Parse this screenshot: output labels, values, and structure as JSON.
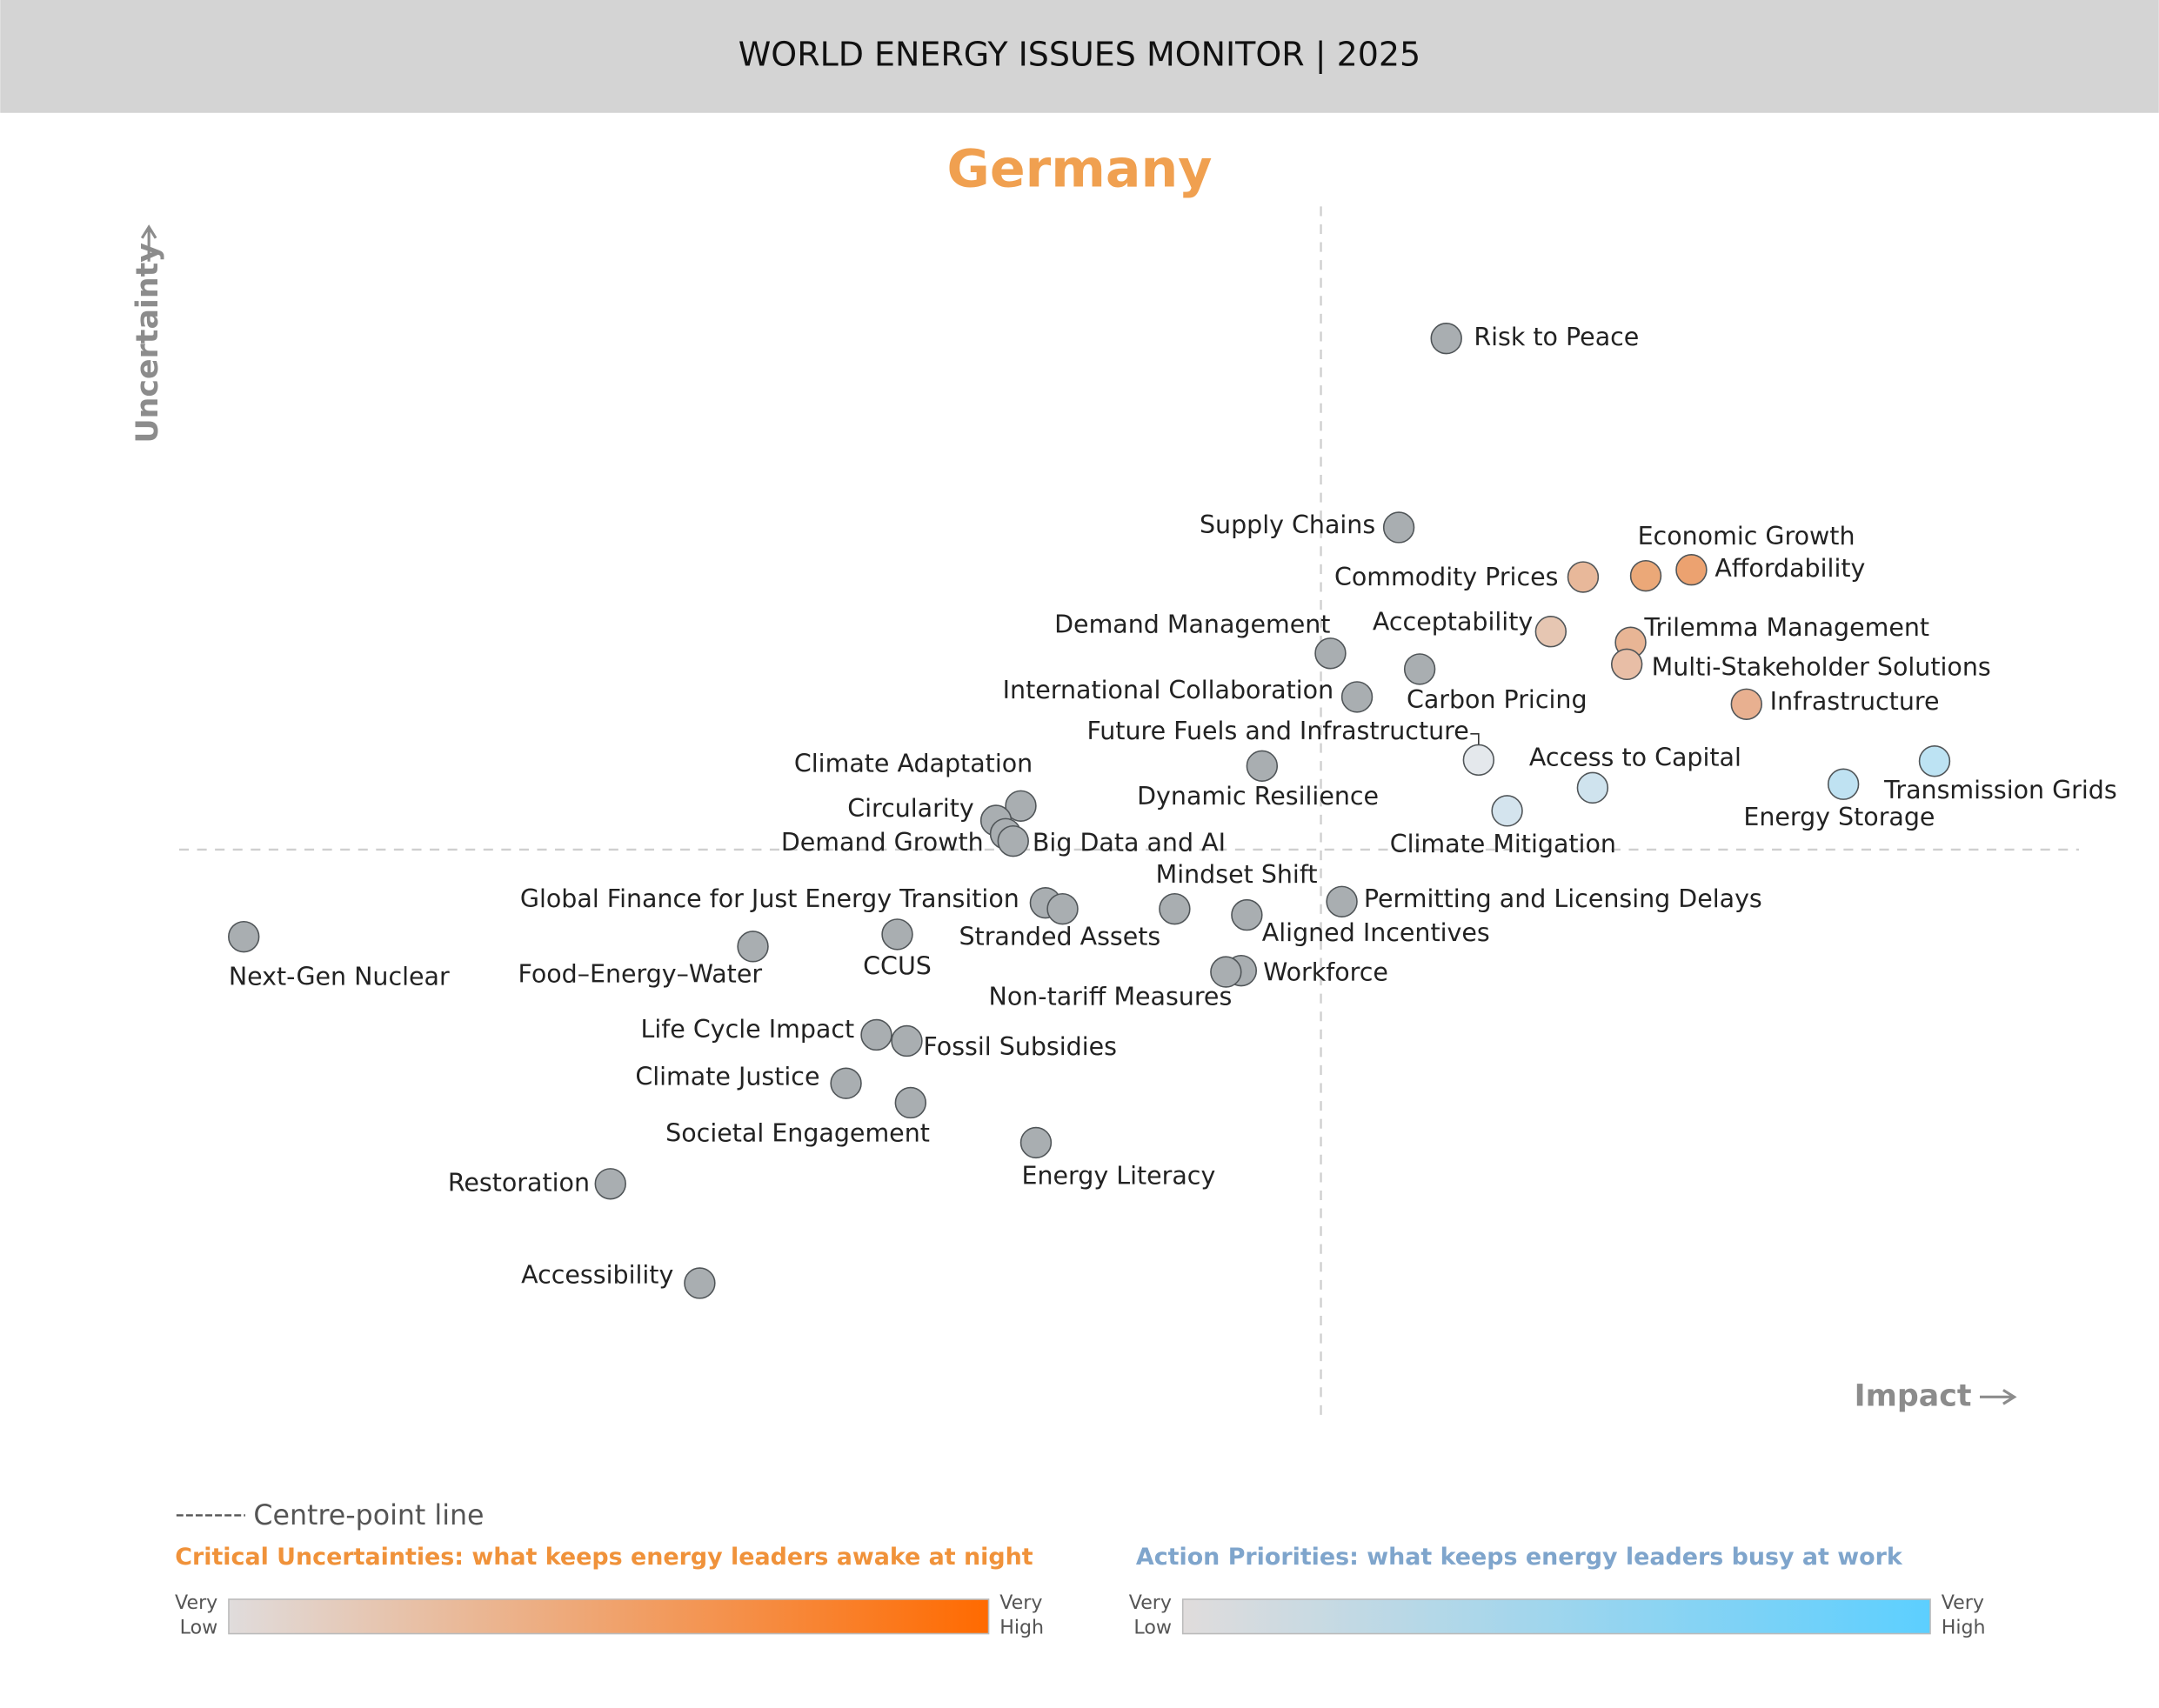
{
  "chart_data": {
    "type": "scatter",
    "header": "WORLD ENERGY ISSUES MONITOR | 2025",
    "title": "Germany",
    "x_label": "Impact",
    "y_label": "Uncertainty",
    "xlim": [
      0,
      100
    ],
    "ylim": [
      0,
      100
    ],
    "centre_point": {
      "x": 60.1,
      "y": 46.9,
      "label": "Centre-point line"
    },
    "points": [
      {
        "name": "Risk to Peace",
        "x": 66.7,
        "y": 89.1,
        "color": "#a9aeb1"
      },
      {
        "name": "Supply Chains",
        "x": 64.2,
        "y": 73.5,
        "color": "#a9aeb1"
      },
      {
        "name": "Commodity Prices",
        "x": 73.9,
        "y": 69.4,
        "color": "#e8b89a"
      },
      {
        "name": "Economic Growth",
        "x": 77.2,
        "y": 69.5,
        "color": "#eba878"
      },
      {
        "name": "Affordability",
        "x": 79.6,
        "y": 70.0,
        "color": "#eca270"
      },
      {
        "name": "Acceptability",
        "x": 72.2,
        "y": 64.9,
        "color": "#e6c6b2"
      },
      {
        "name": "Trilemma Management",
        "x": 76.4,
        "y": 64.0,
        "color": "#e8b595"
      },
      {
        "name": "Multi-Stakeholder Solutions",
        "x": 76.2,
        "y": 62.2,
        "color": "#e8bea6"
      },
      {
        "name": "Infrastructure",
        "x": 82.5,
        "y": 58.9,
        "color": "#e8b090"
      },
      {
        "name": "Demand Management",
        "x": 60.6,
        "y": 63.1,
        "color": "#a9aeb1"
      },
      {
        "name": "Carbon Pricing",
        "x": 65.3,
        "y": 61.8,
        "color": "#a9aeb1"
      },
      {
        "name": "International Collaboration",
        "x": 62.0,
        "y": 59.5,
        "color": "#a9aeb1"
      },
      {
        "name": "Future Fuels and Infrastructure",
        "x": 68.4,
        "y": 54.3,
        "color": "#e4e8ec"
      },
      {
        "name": "Dynamic Resilience",
        "x": 57.0,
        "y": 53.8,
        "color": "#a9aeb1"
      },
      {
        "name": "Access to Capital",
        "x": 74.4,
        "y": 52.0,
        "color": "#cfe3ee"
      },
      {
        "name": "Climate Mitigation",
        "x": 69.9,
        "y": 50.1,
        "color": "#d4e4ee"
      },
      {
        "name": "Energy Storage",
        "x": 87.6,
        "y": 52.3,
        "color": "#bfe2f2"
      },
      {
        "name": "Transmission Grids",
        "x": 92.4,
        "y": 54.2,
        "color": "#bde3f3"
      },
      {
        "name": "Climate Adaptation",
        "x": 44.3,
        "y": 50.5,
        "color": "#a9aeb1"
      },
      {
        "name": "Circularity",
        "x": 43.0,
        "y": 49.3,
        "color": "#a9aeb1"
      },
      {
        "name": "Demand Growth",
        "x": 43.5,
        "y": 48.2,
        "color": "#a9aeb1"
      },
      {
        "name": "Big Data and AI",
        "x": 43.9,
        "y": 47.6,
        "color": "#a9aeb1"
      },
      {
        "name": "Mindset Shift",
        "x": 52.4,
        "y": 42.0,
        "color": "#a9aeb1"
      },
      {
        "name": "Permitting and Licensing Delays",
        "x": 61.2,
        "y": 42.6,
        "color": "#a9aeb1"
      },
      {
        "name": "Global Finance for Just Energy Transition",
        "x": 45.6,
        "y": 42.5,
        "color": "#a9aeb1"
      },
      {
        "name": "Stranded Assets",
        "x": 46.5,
        "y": 42.0,
        "color": "#a9aeb1"
      },
      {
        "name": "Aligned Incentives",
        "x": 56.2,
        "y": 41.5,
        "color": "#a9aeb1"
      },
      {
        "name": "CCUS",
        "x": 37.8,
        "y": 39.9,
        "color": "#a9aeb1"
      },
      {
        "name": "Next-Gen Nuclear",
        "x": 3.4,
        "y": 39.7,
        "color": "#a9aeb1"
      },
      {
        "name": "Food–Energy–Water",
        "x": 30.2,
        "y": 38.9,
        "color": "#a9aeb1"
      },
      {
        "name": "Workforce",
        "x": 55.9,
        "y": 36.9,
        "color": "#a9aeb1"
      },
      {
        "name": "Non-tariff Measures",
        "x": 55.1,
        "y": 36.8,
        "color": "#a9aeb1"
      },
      {
        "name": "Life Cycle Impact",
        "x": 36.7,
        "y": 31.6,
        "color": "#a9aeb1"
      },
      {
        "name": "Fossil Subsidies",
        "x": 38.3,
        "y": 31.1,
        "color": "#a9aeb1"
      },
      {
        "name": "Climate Justice",
        "x": 35.1,
        "y": 27.6,
        "color": "#a9aeb1"
      },
      {
        "name": "Societal Engagement",
        "x": 38.5,
        "y": 26.0,
        "color": "#a9aeb1"
      },
      {
        "name": "Energy Literacy",
        "x": 45.1,
        "y": 22.7,
        "color": "#a9aeb1"
      },
      {
        "name": "Restoration",
        "x": 22.7,
        "y": 19.3,
        "color": "#a9aeb1"
      },
      {
        "name": "Accessibility",
        "x": 27.4,
        "y": 11.1,
        "color": "#a9aeb1"
      }
    ],
    "legend": [
      {
        "label": "Critical Uncertainties: what keeps energy leaders awake at night",
        "color": "#f0923a",
        "colors": [
          "#e0dcdc",
          "#ff6a00"
        ],
        "low": [
          "Very",
          "Low"
        ],
        "high": [
          "Very",
          "High"
        ]
      },
      {
        "label": "Action Priorities: what keeps energy leaders busy at work",
        "color": "#7fa5cc",
        "colors": [
          "#e0dcdc",
          "#5ccfff"
        ],
        "low": [
          "Very",
          "Low"
        ],
        "high": [
          "Very",
          "High"
        ]
      }
    ]
  }
}
